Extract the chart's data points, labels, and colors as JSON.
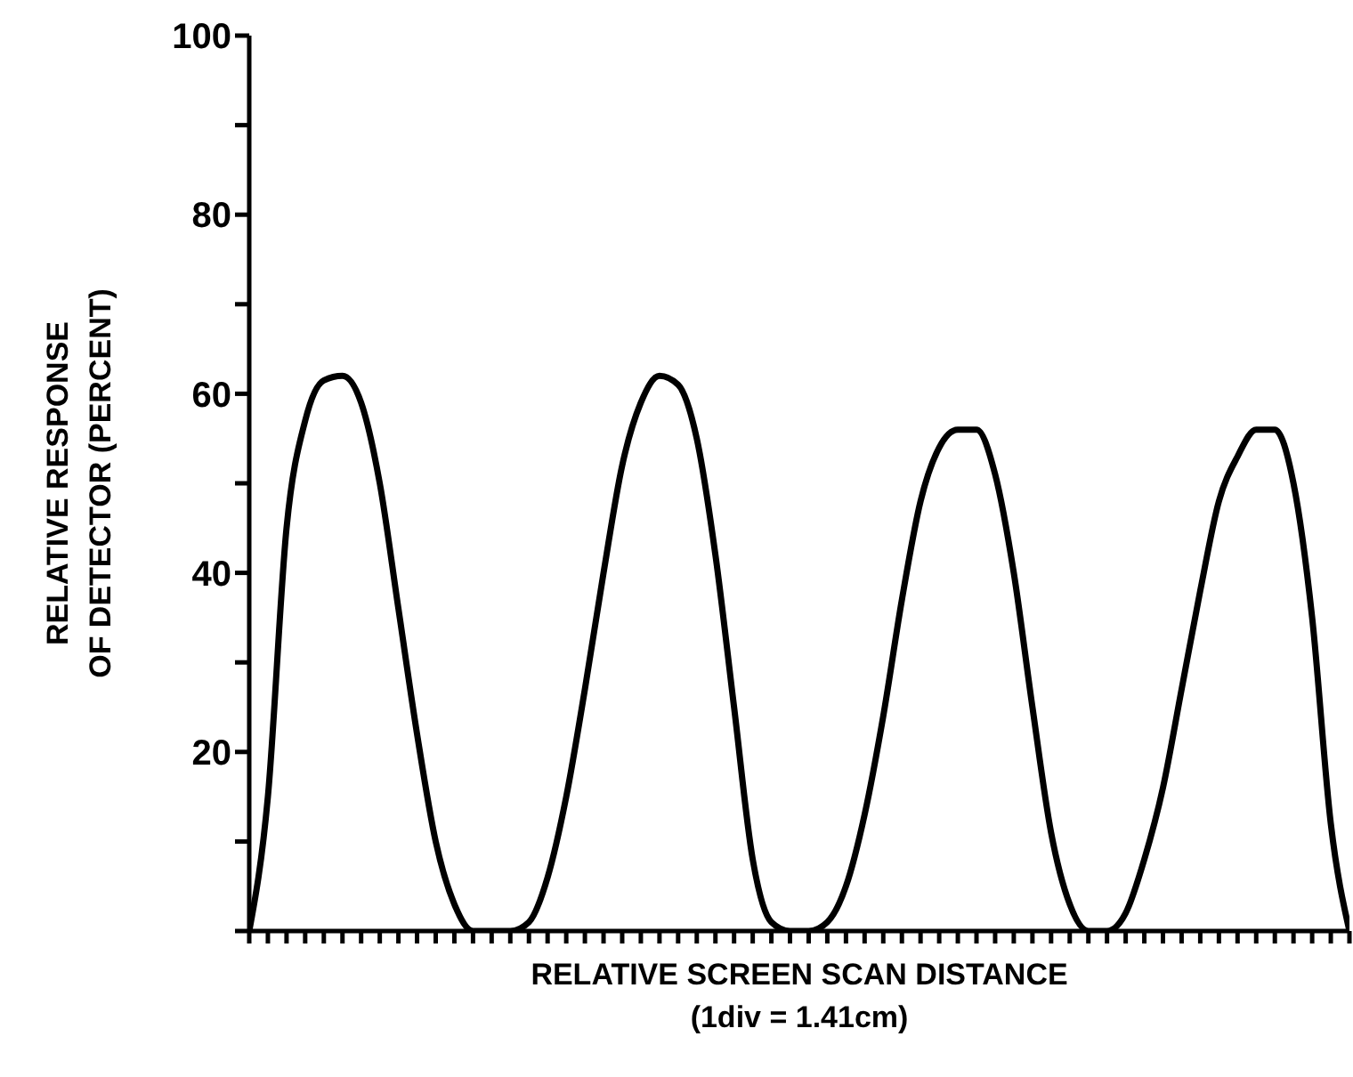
{
  "chart_data": {
    "type": "line",
    "xlabel": "RELATIVE SCREEN SCAN DISTANCE\n(1div = 1.41cm)",
    "ylabel": "RELATIVE RESPONSE\nOF DETECTOR (PERCENT)",
    "categories": [
      null,
      null,
      null,
      null,
      null,
      null,
      null,
      null,
      null,
      null,
      null,
      null,
      null,
      null,
      null,
      null,
      null,
      null,
      null,
      null,
      null,
      null,
      null,
      null,
      null,
      null,
      null,
      null,
      null,
      null,
      null,
      null,
      null,
      null,
      null,
      null,
      null,
      null,
      null,
      null,
      null,
      null,
      null,
      null,
      null,
      null,
      null,
      null,
      null,
      null,
      null,
      null,
      null,
      null,
      null,
      null,
      null,
      null,
      null,
      null
    ],
    "series": [
      {
        "color": "#000000",
        "values": [
          0,
          15,
          45,
          57,
          61.5,
          62,
          59,
          50,
          36,
          22,
          10,
          3,
          0,
          0,
          0,
          1,
          6,
          15,
          27,
          40,
          52,
          59,
          62,
          61,
          55,
          42,
          25,
          8,
          1,
          0,
          0,
          1,
          5,
          13,
          24,
          37,
          48,
          54,
          56,
          56,
          51,
          40,
          25,
          11,
          3,
          0,
          0,
          2,
          8,
          16,
          27,
          38,
          48,
          53,
          56,
          56,
          50,
          35,
          12,
          0
        ]
      }
    ],
    "ylim": [
      0,
      100
    ],
    "yticks": [
      {
        "value": 0,
        "label": null
      },
      {
        "value": 10,
        "label": null
      },
      20,
      {
        "value": 30,
        "label": null
      },
      40,
      {
        "value": 50,
        "label": null
      },
      60,
      {
        "value": 70,
        "label": null
      },
      80,
      {
        "value": 90,
        "label": null
      },
      100
    ],
    "grid": false,
    "marker": "none",
    "line_style": "solid"
  }
}
